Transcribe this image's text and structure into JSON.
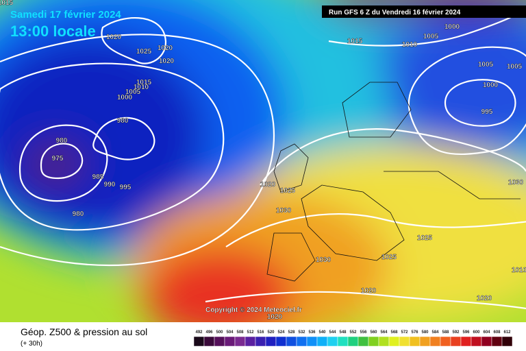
{
  "header": {
    "date": "Samedi 17 février 2024",
    "time": "13:00 locale",
    "run": "Run GFS 6 Z du Vendredi 16 février 2024"
  },
  "copyright": "Copyright © 2024 Meteociel.fr",
  "footer": {
    "title": "Géop. Z500 & pression au sol",
    "lead": "(+ 30h)"
  },
  "legend": {
    "values": [
      492,
      496,
      500,
      504,
      508,
      512,
      516,
      520,
      524,
      528,
      532,
      536,
      540,
      544,
      548,
      552,
      556,
      560,
      564,
      568,
      572,
      576,
      580,
      584,
      588,
      592,
      596,
      600,
      604,
      608,
      612
    ],
    "colors": [
      "#1a0a1a",
      "#3a0a3a",
      "#55105a",
      "#6a1a78",
      "#7a2a90",
      "#5a20a0",
      "#3a20b0",
      "#2020c0",
      "#1030d0",
      "#1050e0",
      "#1070f0",
      "#1090f8",
      "#10b0f8",
      "#20d0f0",
      "#20e0c0",
      "#20d080",
      "#40c040",
      "#80d020",
      "#b0e020",
      "#e0f020",
      "#f0e030",
      "#f0c020",
      "#f0a020",
      "#f08020",
      "#f06020",
      "#e84020",
      "#e02020",
      "#c01020",
      "#900020",
      "#600010",
      "#300008"
    ]
  },
  "isobars": [
    1015,
    1020,
    1025,
    1020,
    1020,
    1015,
    1010,
    1005,
    1000,
    980,
    980,
    975,
    985,
    990,
    995,
    980,
    1015,
    1010,
    1005,
    1000,
    1005,
    1005,
    1000,
    995,
    1020,
    1025,
    1030,
    1030,
    1030,
    1025,
    1025,
    1020,
    1020,
    1020,
    1010
  ]
}
